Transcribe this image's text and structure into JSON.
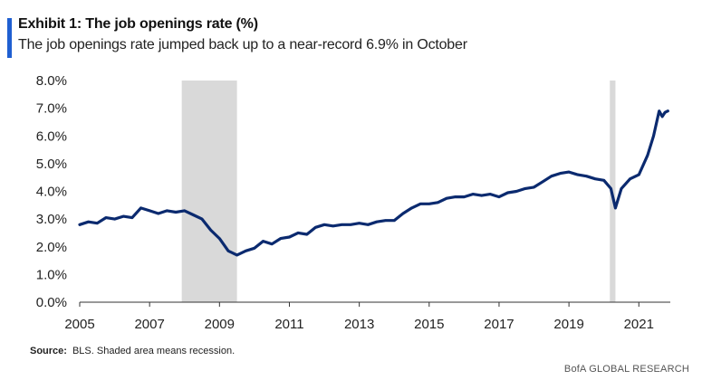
{
  "header": {
    "title": "Exhibit 1: The job openings rate (%)",
    "subtitle": "The job openings rate jumped back up to a near-record 6.9% in October"
  },
  "footer": {
    "source_label": "Source:",
    "source_text": "BLS. Shaded area means recession.",
    "brand": "BofA GLOBAL RESEARCH"
  },
  "colors": {
    "accent": "#1f5fd1",
    "line": "#0b2a6f",
    "recession": "#d9d9d9"
  },
  "chart_data": {
    "type": "line",
    "title": "Exhibit 1: The job openings rate (%)",
    "xlabel": "",
    "ylabel": "",
    "xlim": [
      2005.0,
      2021.9
    ],
    "ylim": [
      0.0,
      8.0
    ],
    "yticks": [
      0,
      1,
      2,
      3,
      4,
      5,
      6,
      7,
      8
    ],
    "ytick_labels": [
      "0.0%",
      "1.0%",
      "2.0%",
      "3.0%",
      "4.0%",
      "5.0%",
      "6.0%",
      "7.0%",
      "8.0%"
    ],
    "xticks": [
      2005,
      2007,
      2009,
      2011,
      2013,
      2015,
      2017,
      2019,
      2021
    ],
    "xtick_labels": [
      "2005",
      "2007",
      "2009",
      "2011",
      "2013",
      "2015",
      "2017",
      "2019",
      "2021"
    ],
    "grid": false,
    "recessions": [
      [
        2007.92,
        2009.5
      ],
      [
        2020.17,
        2020.33
      ]
    ],
    "series": [
      {
        "values": [
          [
            2005.0,
            2.8
          ],
          [
            2005.25,
            2.9
          ],
          [
            2005.5,
            2.85
          ],
          [
            2005.75,
            3.05
          ],
          [
            2006.0,
            3.0
          ],
          [
            2006.25,
            3.1
          ],
          [
            2006.5,
            3.05
          ],
          [
            2006.75,
            3.4
          ],
          [
            2007.0,
            3.3
          ],
          [
            2007.25,
            3.2
          ],
          [
            2007.5,
            3.3
          ],
          [
            2007.75,
            3.25
          ],
          [
            2008.0,
            3.3
          ],
          [
            2008.25,
            3.15
          ],
          [
            2008.5,
            3.0
          ],
          [
            2008.75,
            2.6
          ],
          [
            2009.0,
            2.3
          ],
          [
            2009.25,
            1.85
          ],
          [
            2009.5,
            1.7
          ],
          [
            2009.75,
            1.85
          ],
          [
            2010.0,
            1.95
          ],
          [
            2010.25,
            2.2
          ],
          [
            2010.5,
            2.1
          ],
          [
            2010.75,
            2.3
          ],
          [
            2011.0,
            2.35
          ],
          [
            2011.25,
            2.5
          ],
          [
            2011.5,
            2.45
          ],
          [
            2011.75,
            2.7
          ],
          [
            2012.0,
            2.8
          ],
          [
            2012.25,
            2.75
          ],
          [
            2012.5,
            2.8
          ],
          [
            2012.75,
            2.8
          ],
          [
            2013.0,
            2.85
          ],
          [
            2013.25,
            2.8
          ],
          [
            2013.5,
            2.9
          ],
          [
            2013.75,
            2.95
          ],
          [
            2014.0,
            2.95
          ],
          [
            2014.25,
            3.2
          ],
          [
            2014.5,
            3.4
          ],
          [
            2014.75,
            3.55
          ],
          [
            2015.0,
            3.55
          ],
          [
            2015.25,
            3.6
          ],
          [
            2015.5,
            3.75
          ],
          [
            2015.75,
            3.8
          ],
          [
            2016.0,
            3.8
          ],
          [
            2016.25,
            3.9
          ],
          [
            2016.5,
            3.85
          ],
          [
            2016.75,
            3.9
          ],
          [
            2017.0,
            3.8
          ],
          [
            2017.25,
            3.95
          ],
          [
            2017.5,
            4.0
          ],
          [
            2017.75,
            4.1
          ],
          [
            2018.0,
            4.15
          ],
          [
            2018.25,
            4.35
          ],
          [
            2018.5,
            4.55
          ],
          [
            2018.75,
            4.65
          ],
          [
            2019.0,
            4.7
          ],
          [
            2019.25,
            4.6
          ],
          [
            2019.5,
            4.55
          ],
          [
            2019.75,
            4.45
          ],
          [
            2020.0,
            4.4
          ],
          [
            2020.2,
            4.1
          ],
          [
            2020.33,
            3.4
          ],
          [
            2020.5,
            4.1
          ],
          [
            2020.75,
            4.45
          ],
          [
            2021.0,
            4.6
          ],
          [
            2021.25,
            5.3
          ],
          [
            2021.42,
            6.0
          ],
          [
            2021.58,
            6.9
          ],
          [
            2021.67,
            6.7
          ],
          [
            2021.75,
            6.85
          ],
          [
            2021.83,
            6.9
          ]
        ]
      }
    ]
  }
}
